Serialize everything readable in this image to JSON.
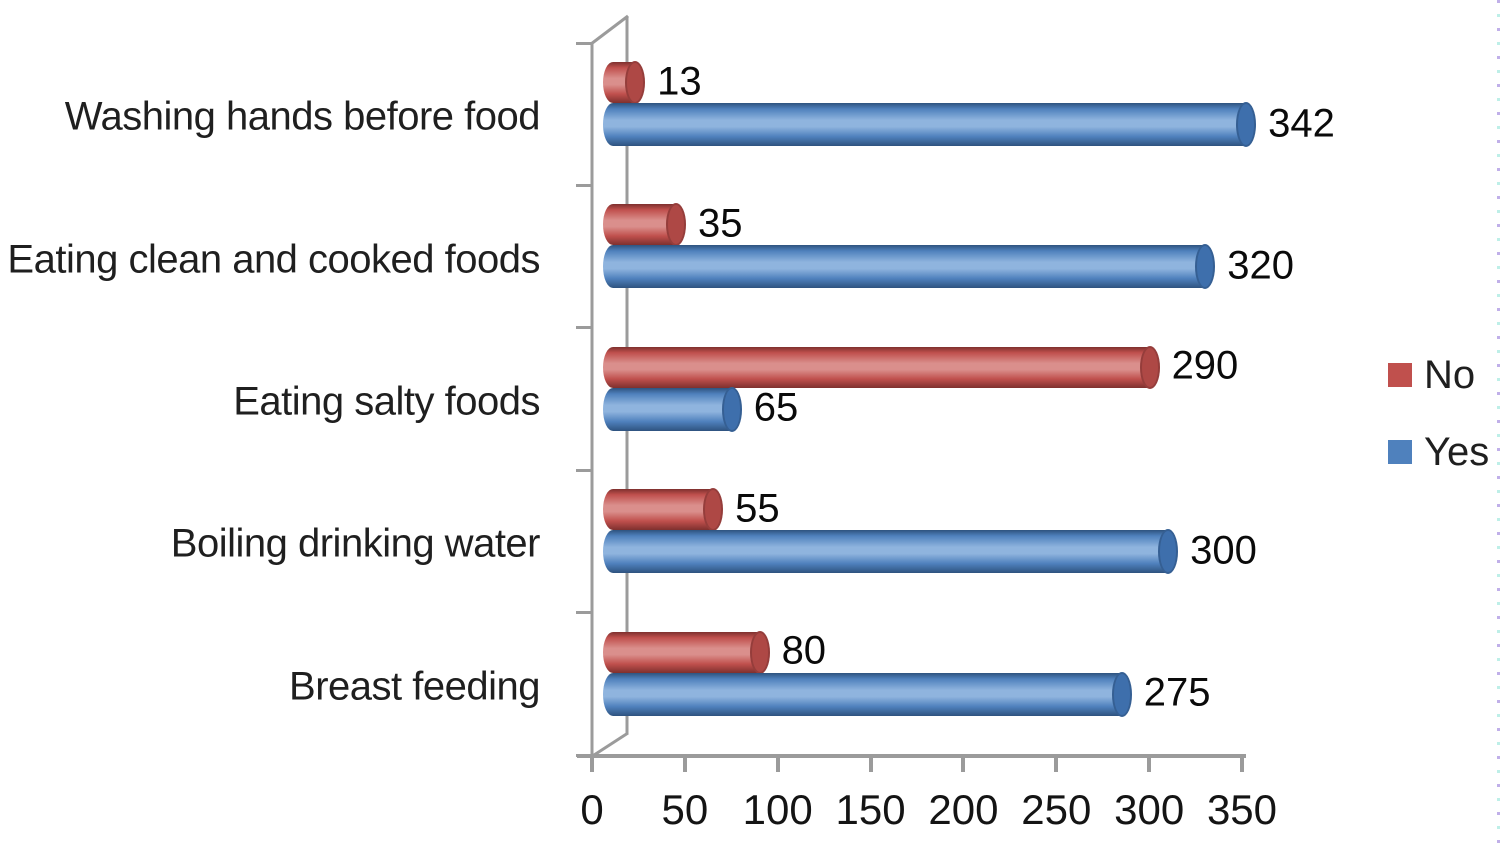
{
  "chart_data": {
    "type": "bar",
    "style": "3d-cylinder",
    "orientation": "horizontal",
    "title": "",
    "categories": [
      "Washing hands before food",
      "Eating clean and cooked foods",
      "Eating salty foods",
      "Boiling drinking water",
      "Breast feeding"
    ],
    "series": [
      {
        "name": "No",
        "color": "#C0504D",
        "shade_dark": "#7E302E",
        "shade_light": "#DA8F8C",
        "cap_color": "#AE4845",
        "values": [
          13,
          35,
          290,
          55,
          80
        ]
      },
      {
        "name": "Yes",
        "color": "#4F81BD",
        "shade_dark": "#2E537F",
        "shade_light": "#8FB4DE",
        "cap_color": "#3E6FAC",
        "values": [
          342,
          320,
          65,
          300,
          275
        ]
      }
    ],
    "x_axis": {
      "min": 0,
      "max": 350,
      "ticks": [
        0,
        50,
        100,
        150,
        200,
        250,
        300,
        350
      ]
    },
    "data_labels": true,
    "legend_position": "right",
    "grid": false,
    "frame_color": "#9B9B9B",
    "text_color": "#1A1A1A",
    "background_color": "#FFFFFF"
  }
}
